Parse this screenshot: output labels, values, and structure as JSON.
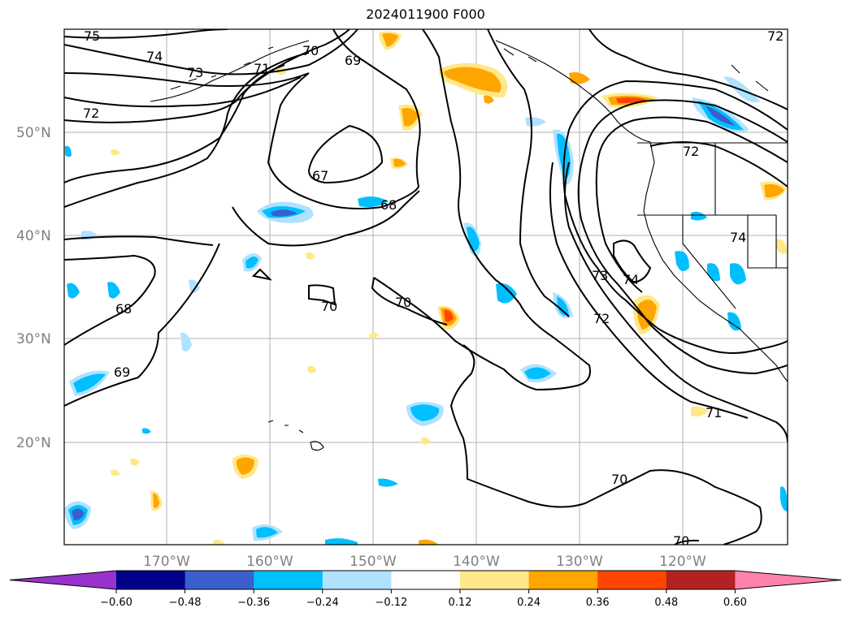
{
  "title": "2024011900 F000",
  "lat_labels": [
    "50°N",
    "40°N",
    "30°N",
    "20°N"
  ],
  "lon_labels": [
    "170°W",
    "160°W",
    "150°W",
    "140°W",
    "130°W",
    "120°W"
  ],
  "contour_labels": [
    "75",
    "74",
    "73",
    "71",
    "70",
    "69",
    "72",
    "67",
    "68",
    "68",
    "69",
    "70",
    "70",
    "73",
    "72",
    "74",
    "74",
    "71",
    "70",
    "70",
    "72",
    "72"
  ],
  "colorbar": {
    "colors": [
      "#9932cc",
      "#00008b",
      "#3a5fcd",
      "#00bfff",
      "#b0e2ff",
      "#ffffff",
      "#ffe88a",
      "#ffa500",
      "#ff4500",
      "#b22222",
      "#ff82ab"
    ],
    "tick_labels": [
      "-0.60",
      "-0.48",
      "-0.36",
      "-0.24",
      "-0.12",
      "0.12",
      "0.24",
      "0.36",
      "0.48",
      "0.60"
    ]
  }
}
